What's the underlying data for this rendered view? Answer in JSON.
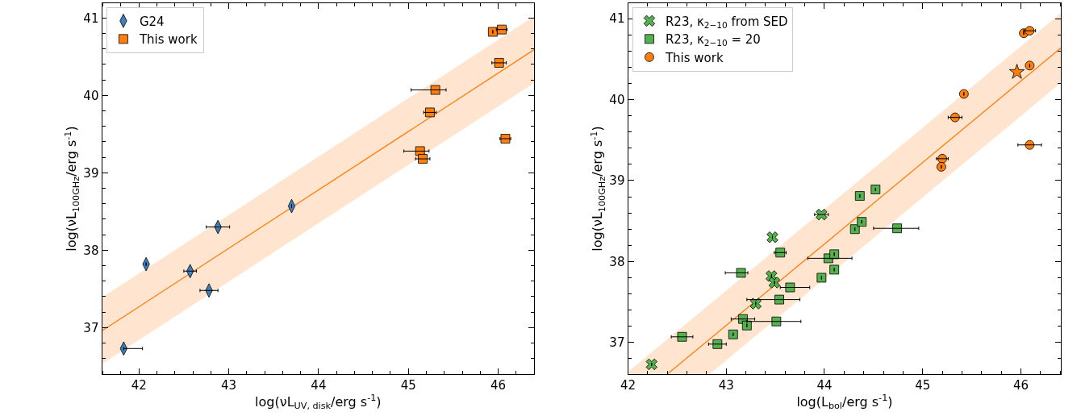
{
  "chart_data": [
    {
      "type": "scatter",
      "xlabel": "log(νL$_{UV, disk}$/erg s$^{-1}$)",
      "ylabel": "log(νL$_{100GHz}$/erg s$^{-1}$)",
      "xlim": [
        41.59,
        46.4
      ],
      "ylim": [
        36.4,
        41.19
      ],
      "xticks": [
        42,
        43,
        44,
        45,
        46
      ],
      "yticks": [
        37,
        38,
        39,
        40,
        41
      ],
      "legend": "top left",
      "series": [
        {
          "name": "G24",
          "color": "#3f7fb8",
          "marker": "diamond",
          "x": [
            41.83,
            42.08,
            42.57,
            42.78,
            42.88,
            43.7
          ],
          "values": [
            36.73,
            37.82,
            37.73,
            37.48,
            38.3,
            38.57
          ],
          "xerrors": [
            [
              41.83,
              42.04
            ],
            null,
            0.07,
            0.1,
            0.13,
            null
          ]
        },
        {
          "name": "This work",
          "color": "#ff7f0e",
          "marker": "square",
          "x": [
            45.94,
            46.04,
            46.01,
            45.3,
            45.24,
            46.08,
            45.13,
            45.16
          ],
          "values": [
            40.82,
            40.85,
            40.42,
            40.07,
            39.78,
            39.44,
            39.28,
            39.18
          ],
          "xerrors": [
            null,
            0.06,
            0.08,
            [
              45.03,
              45.42
            ],
            0.07,
            0.06,
            [
              44.95,
              45.23
            ],
            0.08
          ]
        },
        {
          "type": "line",
          "color": "#ff7f0e",
          "x": [
            41.59,
            46.4
          ],
          "values": [
            36.96,
            40.59
          ],
          "lower": [
            36.53,
            40.16
          ],
          "upper": [
            37.39,
            41.02
          ]
        }
      ]
    },
    {
      "type": "scatter",
      "xlabel": "log(L$_{bol}$/erg s$^{-1}$)",
      "ylabel": "log(νL$_{100GHz}$/erg s$^{-1}$)",
      "xlim": [
        42.0,
        46.41
      ],
      "ylim": [
        36.61,
        41.19
      ],
      "xticks": [
        42,
        43,
        44,
        45,
        46
      ],
      "yticks": [
        37,
        38,
        39,
        40,
        41
      ],
      "legend": "top left",
      "series": [
        {
          "name": "R23, κ$_{2−10}$ from SED",
          "color": "#55b04f",
          "marker": "cross",
          "x": [
            42.24,
            43.47,
            43.46,
            43.49,
            43.3,
            43.97
          ],
          "values": [
            36.73,
            38.3,
            37.82,
            37.74,
            37.48,
            38.58
          ],
          "xerrors": [
            null,
            null,
            null,
            null,
            null,
            0.07
          ]
        },
        {
          "name": "R23, κ$_{2−10}$ = 20",
          "color": "#55b04f",
          "marker": "square",
          "x": [
            42.55,
            42.91,
            43.07,
            43.17,
            43.21,
            43.51,
            43.54,
            43.15,
            43.55,
            43.65,
            43.97,
            44.04,
            44.1,
            44.1,
            44.31,
            44.38,
            44.36,
            44.52,
            44.74
          ],
          "values": [
            37.07,
            36.98,
            37.1,
            37.29,
            37.21,
            37.26,
            37.53,
            37.86,
            38.11,
            37.68,
            37.8,
            38.04,
            38.09,
            37.9,
            38.4,
            38.49,
            38.81,
            38.89,
            38.41
          ],
          "xerrors": [
            0.11,
            0.09,
            null,
            0.12,
            null,
            [
              43.21,
              43.76
            ],
            [
              43.21,
              43.75
            ],
            [
              42.99,
              43.22
            ],
            0.06,
            [
              43.55,
              43.85
            ],
            null,
            [
              43.83,
              44.28
            ],
            null,
            null,
            null,
            null,
            null,
            null,
            [
              44.5,
              44.96
            ]
          ]
        },
        {
          "name": "This work",
          "color": "#ff7f0e",
          "marker": "circle",
          "x": [
            46.03,
            46.09,
            46.09,
            45.42,
            45.33,
            46.09,
            45.2,
            45.19
          ],
          "values": [
            40.82,
            40.85,
            40.42,
            40.07,
            39.78,
            39.44,
            39.27,
            39.17
          ],
          "xerrors": [
            null,
            0.06,
            null,
            null,
            0.07,
            0.12,
            0.06,
            null
          ]
        },
        {
          "color": "#ff7f0e",
          "marker": "star",
          "x": [
            45.96
          ],
          "values": [
            40.34
          ]
        },
        {
          "type": "line",
          "color": "#ff7f0e",
          "x": [
            42.0,
            42.4,
            42.83,
            46.41
          ],
          "values": [
            null,
            36.61,
            37.04,
            40.64
          ],
          "lower": [
            36.61,
            36.61,
            36.61,
            40.21
          ],
          "upper": [
            36.64,
            37.04,
            37.47,
            41.07
          ]
        }
      ]
    }
  ]
}
